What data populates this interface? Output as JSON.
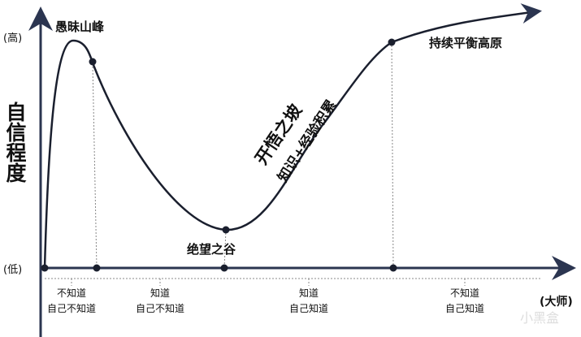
{
  "y_axis": {
    "label": "自信程度",
    "high": "(高)",
    "low": "(低)"
  },
  "x_axis": {
    "end_label": "(大师)"
  },
  "stages": [
    {
      "name": "愚昧山峰"
    },
    {
      "name": "绝望之谷"
    },
    {
      "name": "开悟之坡",
      "sub": "知识+经验积累"
    },
    {
      "name": "持续平衡高原"
    }
  ],
  "phases": [
    {
      "line1": "不知道",
      "line2": "自己不知道"
    },
    {
      "line1": "知道",
      "line2": "自己不知道"
    },
    {
      "line1": "知道",
      "line2": "自己知道"
    },
    {
      "line1": "不知道",
      "line2": "自己知道"
    }
  ],
  "colors": {
    "axis": "#2b3550",
    "curve": "#1a1f2e"
  },
  "watermark": "小黑盒"
}
